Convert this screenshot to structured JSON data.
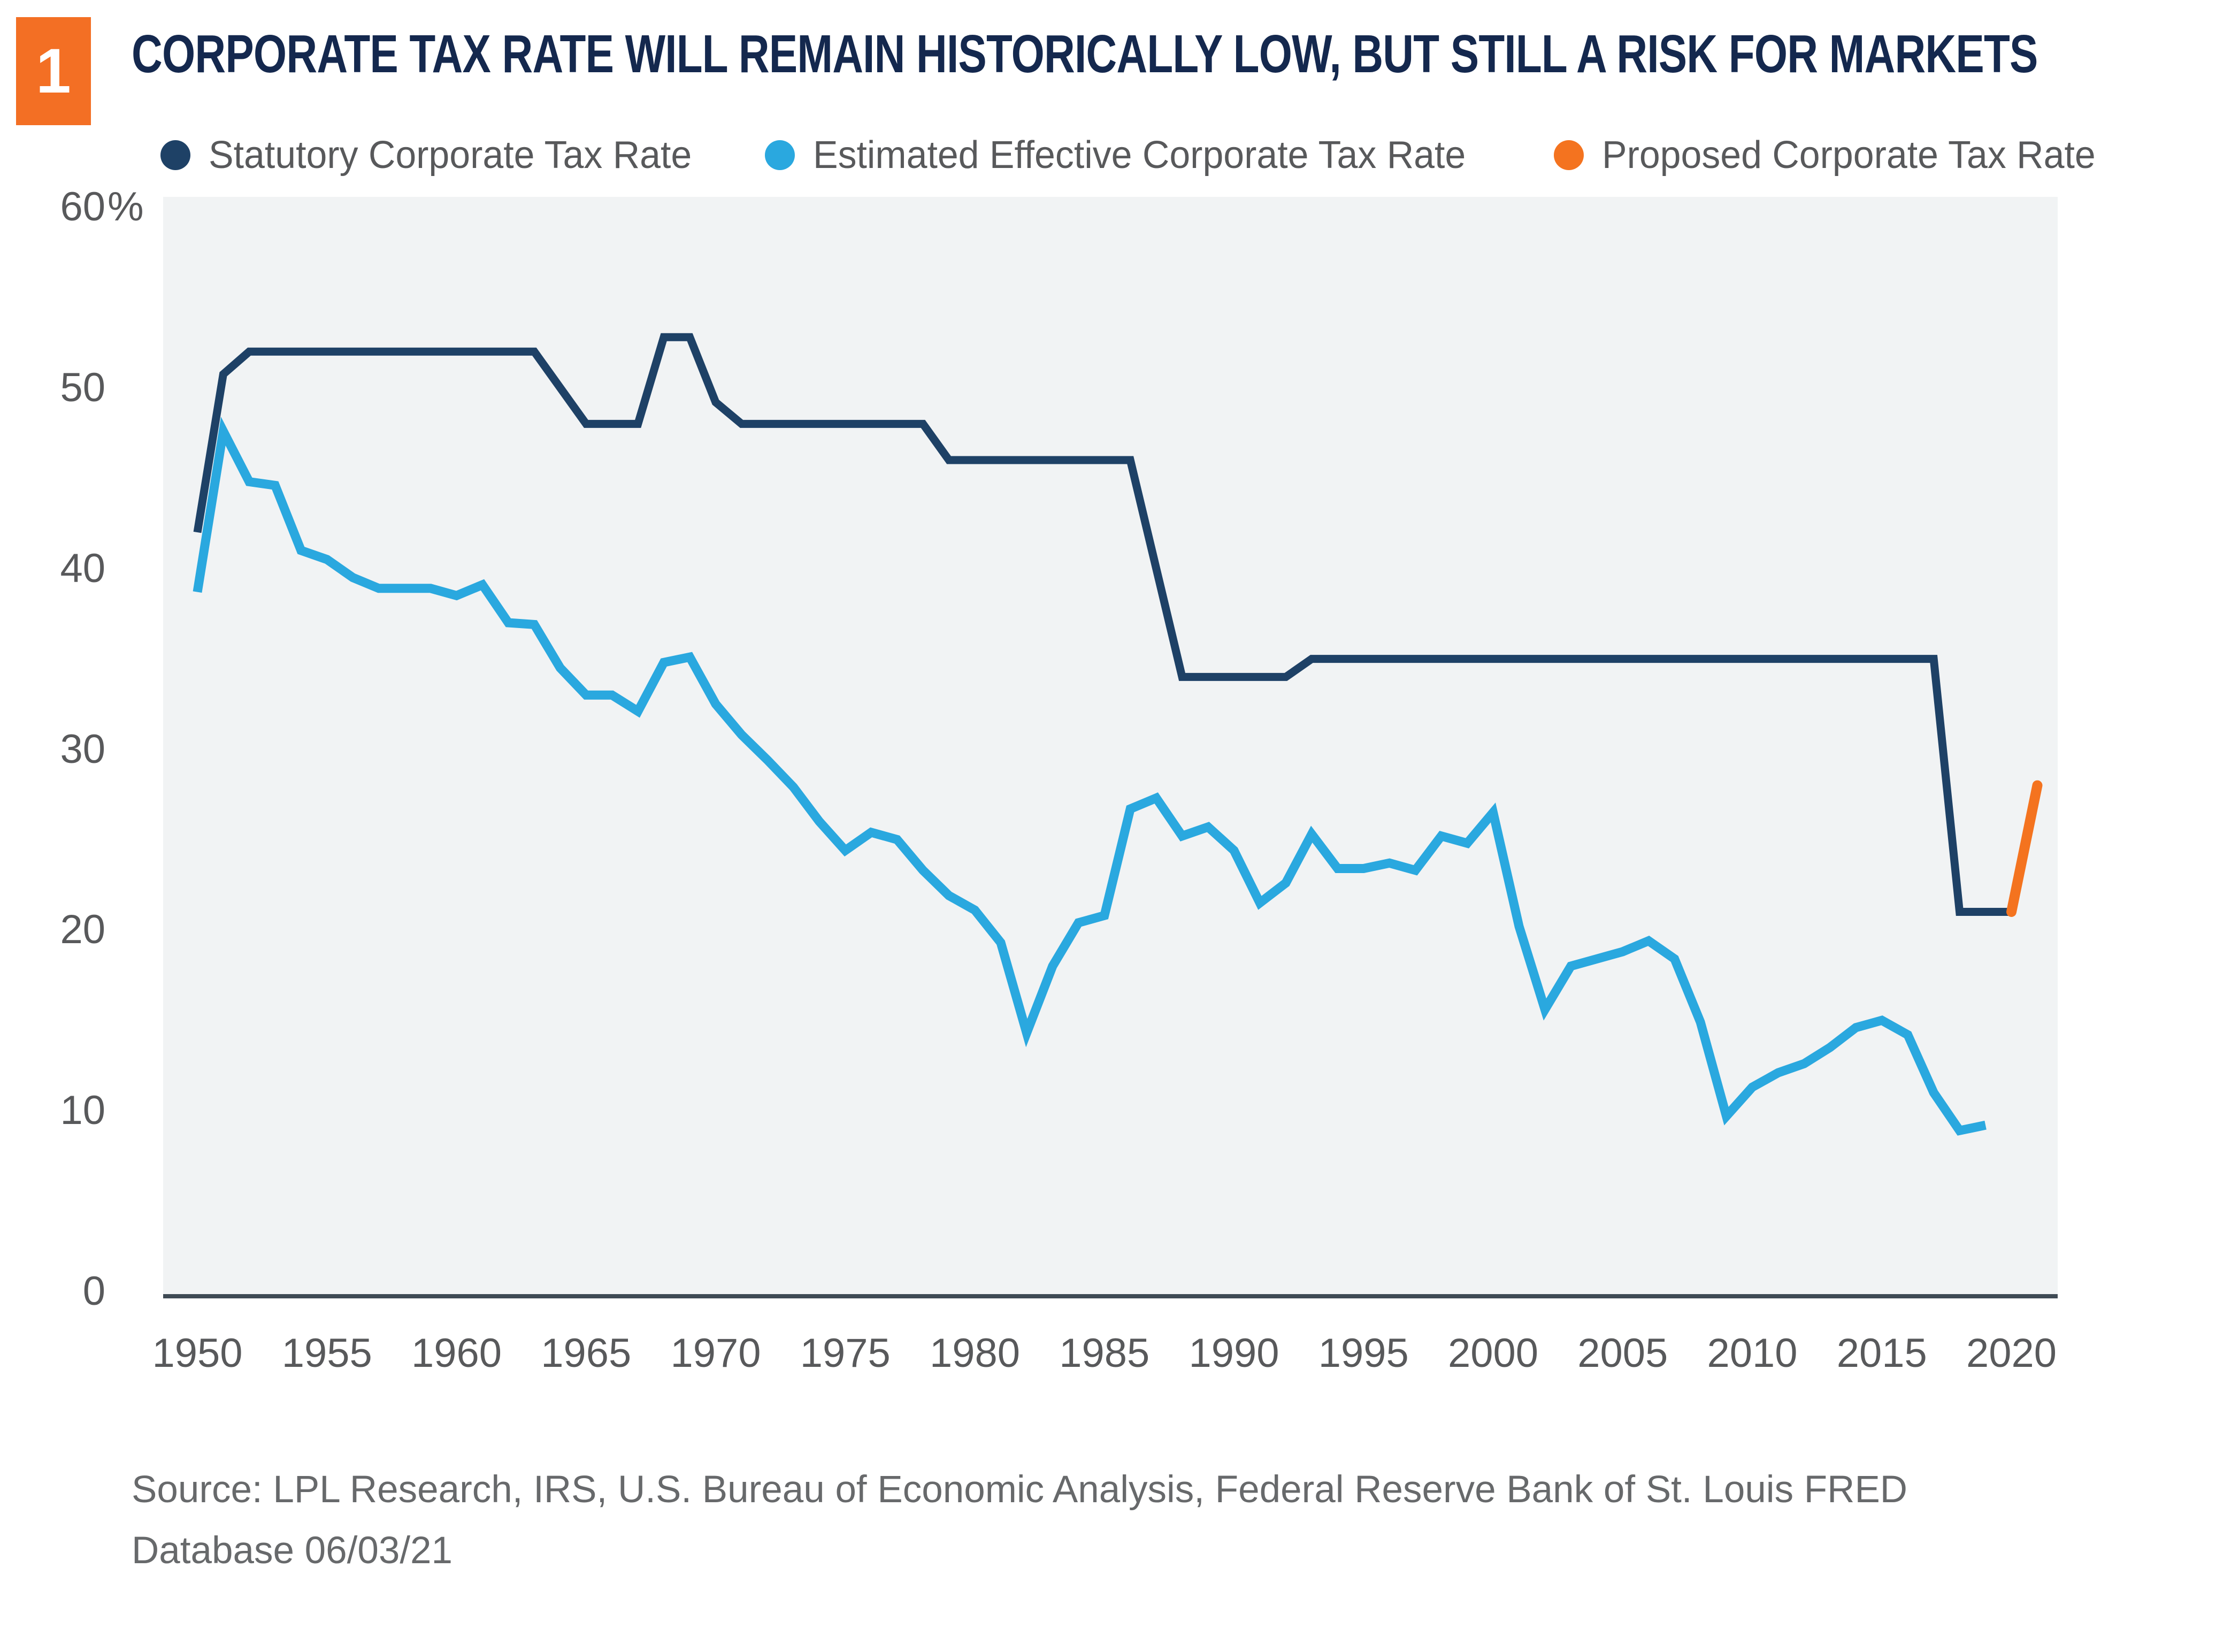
{
  "figure_badge": "1",
  "title": "CORPORATE TAX RATE WILL REMAIN HISTORICALLY LOW, BUT STILL A RISK FOR MARKETS",
  "legend": [
    {
      "label": "Statutory Corporate Tax Rate",
      "color": "#1e4166"
    },
    {
      "label": "Estimated Effective Corporate Tax Rate",
      "color": "#2aa8df"
    },
    {
      "label": "Proposed Corporate Tax Rate",
      "color": "#f4731f"
    }
  ],
  "source": {
    "line1": "Source: LPL Research, IRS, U.S. Bureau of Economic Analysis, Federal Reserve Bank of St. Louis FRED",
    "line2": "Database 06/03/21"
  },
  "colors": {
    "badge": "#f36f24",
    "title": "#14284e",
    "axis_text": "#58595b",
    "axis_line": "#3f4a54",
    "plot_background": "#f1f3f4",
    "statutory": "#1e4166",
    "effective": "#2aa8df",
    "proposed": "#f4731f"
  },
  "chart_data": {
    "type": "line",
    "title": "CORPORATE TAX RATE WILL REMAIN HISTORICALLY LOW, BUT STILL A RISK FOR MARKETS",
    "xlabel": "",
    "ylabel": "",
    "ylim": [
      0,
      60
    ],
    "xlim": [
      1950,
      2022
    ],
    "grid": false,
    "legend_position": "top",
    "ytick_values": [
      60,
      50,
      40,
      30,
      20,
      10,
      0
    ],
    "ytick_labels": [
      "60%",
      "50",
      "40",
      "30",
      "20",
      "10",
      "0"
    ],
    "xtick_values": [
      1950,
      1955,
      1960,
      1965,
      1970,
      1975,
      1980,
      1985,
      1990,
      1995,
      2000,
      2005,
      2010,
      2015,
      2020
    ],
    "series": [
      {
        "name": "Statutory Corporate Tax Rate",
        "color": "#1e4166",
        "stroke_width": 15,
        "years": [
          1950,
          1951,
          1952,
          1953,
          1954,
          1955,
          1956,
          1957,
          1958,
          1959,
          1960,
          1961,
          1962,
          1963,
          1964,
          1965,
          1966,
          1967,
          1968,
          1969,
          1970,
          1971,
          1972,
          1973,
          1974,
          1975,
          1976,
          1977,
          1978,
          1979,
          1980,
          1981,
          1982,
          1983,
          1984,
          1985,
          1986,
          1987,
          1988,
          1989,
          1990,
          1991,
          1992,
          1993,
          1994,
          1995,
          1996,
          1997,
          1998,
          1999,
          2000,
          2001,
          2002,
          2003,
          2004,
          2005,
          2006,
          2007,
          2008,
          2009,
          2010,
          2011,
          2012,
          2013,
          2014,
          2015,
          2016,
          2017,
          2018,
          2019,
          2020
        ],
        "values": [
          42,
          50.75,
          52,
          52,
          52,
          52,
          52,
          52,
          52,
          52,
          52,
          52,
          52,
          52,
          50,
          48,
          48,
          48,
          52.8,
          52.8,
          49.2,
          48,
          48,
          48,
          48,
          48,
          48,
          48,
          48,
          46,
          46,
          46,
          46,
          46,
          46,
          46,
          46,
          40,
          34,
          34,
          34,
          34,
          34,
          35,
          35,
          35,
          35,
          35,
          35,
          35,
          35,
          35,
          35,
          35,
          35,
          35,
          35,
          35,
          35,
          35,
          35,
          35,
          35,
          35,
          35,
          35,
          35,
          35,
          21,
          21,
          21
        ]
      },
      {
        "name": "Estimated Effective Corporate Tax Rate",
        "color": "#2aa8df",
        "stroke_width": 17,
        "years": [
          1950,
          1951,
          1952,
          1953,
          1954,
          1955,
          1956,
          1957,
          1958,
          1959,
          1960,
          1961,
          1962,
          1963,
          1964,
          1965,
          1966,
          1967,
          1968,
          1969,
          1970,
          1971,
          1972,
          1973,
          1974,
          1975,
          1976,
          1977,
          1978,
          1979,
          1980,
          1981,
          1982,
          1983,
          1984,
          1985,
          1986,
          1987,
          1988,
          1989,
          1990,
          1991,
          1992,
          1993,
          1994,
          1995,
          1996,
          1997,
          1998,
          1999,
          2000,
          2001,
          2002,
          2003,
          2004,
          2005,
          2006,
          2007,
          2008,
          2009,
          2010,
          2011,
          2012,
          2013,
          2014,
          2015,
          2016,
          2017,
          2018,
          2019
        ],
        "values": [
          38.7,
          47.6,
          44.8,
          44.6,
          41.0,
          40.5,
          39.5,
          38.9,
          38.9,
          38.9,
          38.5,
          39.1,
          37.0,
          36.9,
          34.5,
          33.0,
          33.0,
          32.1,
          34.8,
          35.1,
          32.5,
          30.8,
          29.4,
          27.9,
          26.0,
          24.4,
          25.4,
          25.0,
          23.3,
          21.9,
          21.1,
          19.3,
          14.3,
          18.0,
          20.4,
          20.8,
          26.7,
          27.3,
          25.2,
          25.7,
          24.4,
          21.5,
          22.6,
          25.3,
          23.4,
          23.4,
          23.7,
          23.3,
          25.2,
          24.8,
          26.5,
          20.2,
          15.6,
          18.0,
          18.4,
          18.8,
          19.4,
          18.4,
          14.9,
          9.7,
          11.3,
          12.1,
          12.6,
          13.5,
          14.6,
          15.0,
          14.2,
          11.0,
          8.9,
          9.2
        ]
      },
      {
        "name": "Proposed Corporate Tax Rate",
        "color": "#f4731f",
        "stroke_width": 19,
        "years": [
          2020,
          2021
        ],
        "values": [
          21,
          28
        ]
      }
    ]
  }
}
